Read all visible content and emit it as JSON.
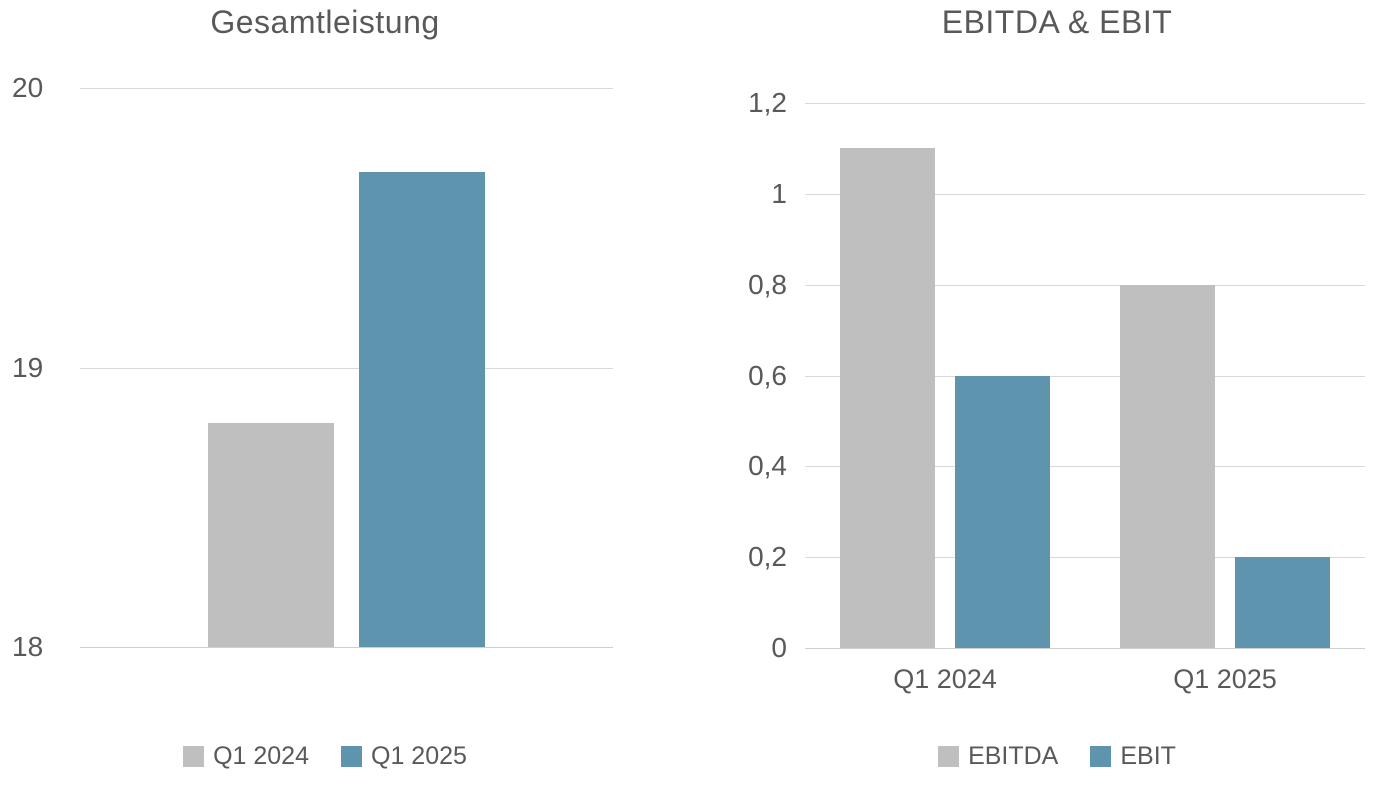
{
  "colors": {
    "series_gray": "#bfbfbf",
    "series_blue": "#5e94ae",
    "text": "#595959",
    "gridline": "#d9d9d9",
    "background": "#ffffff"
  },
  "chart_data": [
    {
      "name": "gesamtleistung",
      "type": "bar",
      "title": "Gesamtleistung",
      "xlabel": "",
      "ylabel": "",
      "ylim": [
        18,
        20
      ],
      "grid": true,
      "legend_position": "bottom",
      "decimal_separator": ",",
      "yticks": [
        {
          "value": 20,
          "label": "20"
        },
        {
          "value": 19,
          "label": "19"
        },
        {
          "value": 18,
          "label": "18"
        }
      ],
      "categories": [
        ""
      ],
      "show_category_labels": false,
      "series": [
        {
          "name": "Q1 2024",
          "color": "#bfbfbf",
          "values": [
            18.8
          ]
        },
        {
          "name": "Q1 2025",
          "color": "#5e94ae",
          "values": [
            19.7
          ]
        }
      ]
    },
    {
      "name": "ebitda-ebit",
      "type": "bar",
      "title": "EBITDA & EBIT",
      "xlabel": "",
      "ylabel": "",
      "ylim": [
        0,
        1.2
      ],
      "grid": true,
      "legend_position": "bottom",
      "decimal_separator": ",",
      "yticks": [
        {
          "value": 1.2,
          "label": "1,2"
        },
        {
          "value": 1,
          "label": "1"
        },
        {
          "value": 0.8,
          "label": "0,8"
        },
        {
          "value": 0.6,
          "label": "0,6"
        },
        {
          "value": 0.4,
          "label": "0,4"
        },
        {
          "value": 0.2,
          "label": "0,2"
        },
        {
          "value": 0,
          "label": "0"
        }
      ],
      "categories": [
        "Q1 2024",
        "Q1 2025"
      ],
      "show_category_labels": true,
      "series": [
        {
          "name": "EBITDA",
          "color": "#bfbfbf",
          "values": [
            1.1,
            0.8
          ]
        },
        {
          "name": "EBIT",
          "color": "#5e94ae",
          "values": [
            0.6,
            0.2
          ]
        }
      ]
    }
  ]
}
